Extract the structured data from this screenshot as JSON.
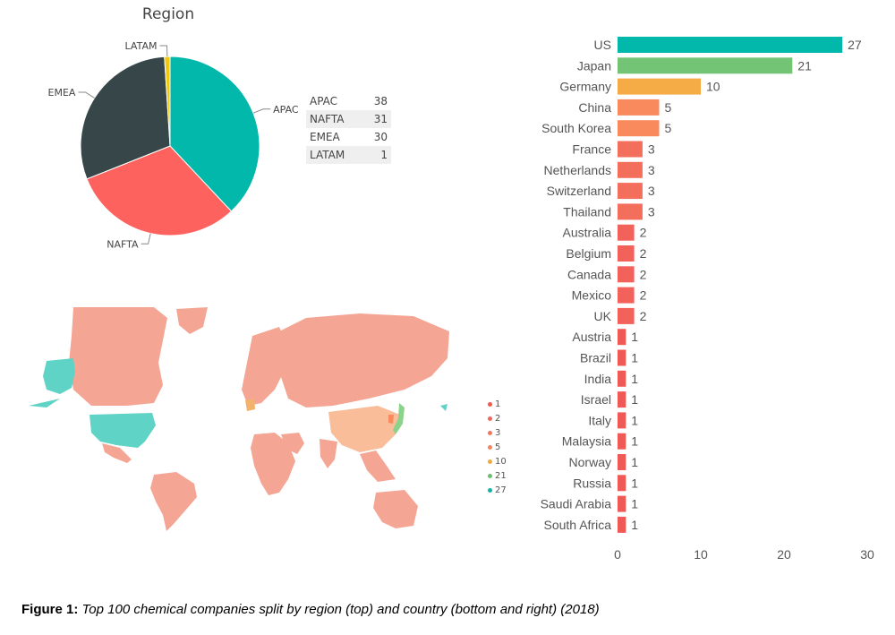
{
  "pie_chart": {
    "title": "Region",
    "table": [
      {
        "label": "APAC",
        "value": "38"
      },
      {
        "label": "NAFTA",
        "value": "31"
      },
      {
        "label": "EMEA",
        "value": "30"
      },
      {
        "label": "LATAM",
        "value": "1"
      }
    ]
  },
  "map_legend": [
    {
      "label": "1",
      "color": "#f2584f"
    },
    {
      "label": "2",
      "color": "#f2655b"
    },
    {
      "label": "3",
      "color": "#f4765e"
    },
    {
      "label": "5",
      "color": "#f5845c"
    },
    {
      "label": "10",
      "color": "#f2a93b"
    },
    {
      "label": "21",
      "color": "#6cbd6c"
    },
    {
      "label": "27",
      "color": "#11b5a4"
    }
  ],
  "caption": {
    "label": "Figure 1:",
    "text": "Top 100 chemical companies split by region (top) and country (bottom and right) (2018)"
  },
  "chart_data": [
    {
      "type": "pie",
      "title": "Region",
      "slices": [
        {
          "label": "APAC",
          "value": 38,
          "color": "#01b8aa"
        },
        {
          "label": "NAFTA",
          "value": 31,
          "color": "#fd625e"
        },
        {
          "label": "EMEA",
          "value": 30,
          "color": "#374649"
        },
        {
          "label": "LATAM",
          "value": 1,
          "color": "#f2c80f"
        }
      ]
    },
    {
      "type": "bar",
      "orientation": "horizontal",
      "categories": [
        "US",
        "Japan",
        "Germany",
        "China",
        "South Korea",
        "France",
        "Netherlands",
        "Switzerland",
        "Thailand",
        "Australia",
        "Belgium",
        "Canada",
        "Mexico",
        "UK",
        "Austria",
        "Brazil",
        "India",
        "Israel",
        "Italy",
        "Malaysia",
        "Norway",
        "Russia",
        "Saudi Arabia",
        "South Africa"
      ],
      "values": [
        27,
        21,
        10,
        5,
        5,
        3,
        3,
        3,
        3,
        2,
        2,
        2,
        2,
        2,
        1,
        1,
        1,
        1,
        1,
        1,
        1,
        1,
        1,
        1
      ],
      "colors": [
        "#01b8aa",
        "#73c474",
        "#f5ac47",
        "#f88a5e",
        "#f88a5e",
        "#f36e5b",
        "#f36e5b",
        "#f36e5b",
        "#f36e5b",
        "#f2625a",
        "#f2625a",
        "#f2625a",
        "#f2625a",
        "#f2625a",
        "#f05a56",
        "#f05a56",
        "#f05a56",
        "#f05a56",
        "#f05a56",
        "#f05a56",
        "#f05a56",
        "#f05a56",
        "#f05a56",
        "#f05a56"
      ],
      "xlim": [
        0,
        30
      ],
      "xticks": [
        0,
        10,
        20,
        30
      ],
      "data_labels": true
    }
  ]
}
